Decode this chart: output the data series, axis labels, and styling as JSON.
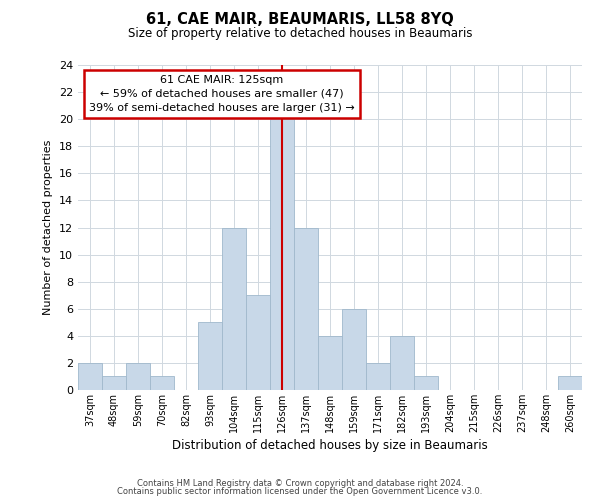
{
  "title": "61, CAE MAIR, BEAUMARIS, LL58 8YQ",
  "subtitle": "Size of property relative to detached houses in Beaumaris",
  "xlabel": "Distribution of detached houses by size in Beaumaris",
  "ylabel": "Number of detached properties",
  "bar_labels": [
    "37sqm",
    "48sqm",
    "59sqm",
    "70sqm",
    "82sqm",
    "93sqm",
    "104sqm",
    "115sqm",
    "126sqm",
    "137sqm",
    "148sqm",
    "159sqm",
    "171sqm",
    "182sqm",
    "193sqm",
    "204sqm",
    "215sqm",
    "226sqm",
    "237sqm",
    "248sqm",
    "260sqm"
  ],
  "bar_values": [
    2,
    1,
    2,
    1,
    0,
    5,
    12,
    7,
    20,
    12,
    4,
    6,
    2,
    4,
    1,
    0,
    0,
    0,
    0,
    0,
    1
  ],
  "bar_color": "#c8d8e8",
  "bar_edge_color": "#a0b8cc",
  "highlight_index": 8,
  "highlight_line_color": "#cc0000",
  "ylim": [
    0,
    24
  ],
  "yticks": [
    0,
    2,
    4,
    6,
    8,
    10,
    12,
    14,
    16,
    18,
    20,
    22,
    24
  ],
  "annotation_title": "61 CAE MAIR: 125sqm",
  "annotation_line1": "← 59% of detached houses are smaller (47)",
  "annotation_line2": "39% of semi-detached houses are larger (31) →",
  "annotation_box_color": "#cc0000",
  "footer_line1": "Contains HM Land Registry data © Crown copyright and database right 2024.",
  "footer_line2": "Contains public sector information licensed under the Open Government Licence v3.0.",
  "background_color": "#ffffff",
  "grid_color": "#d0d8e0"
}
